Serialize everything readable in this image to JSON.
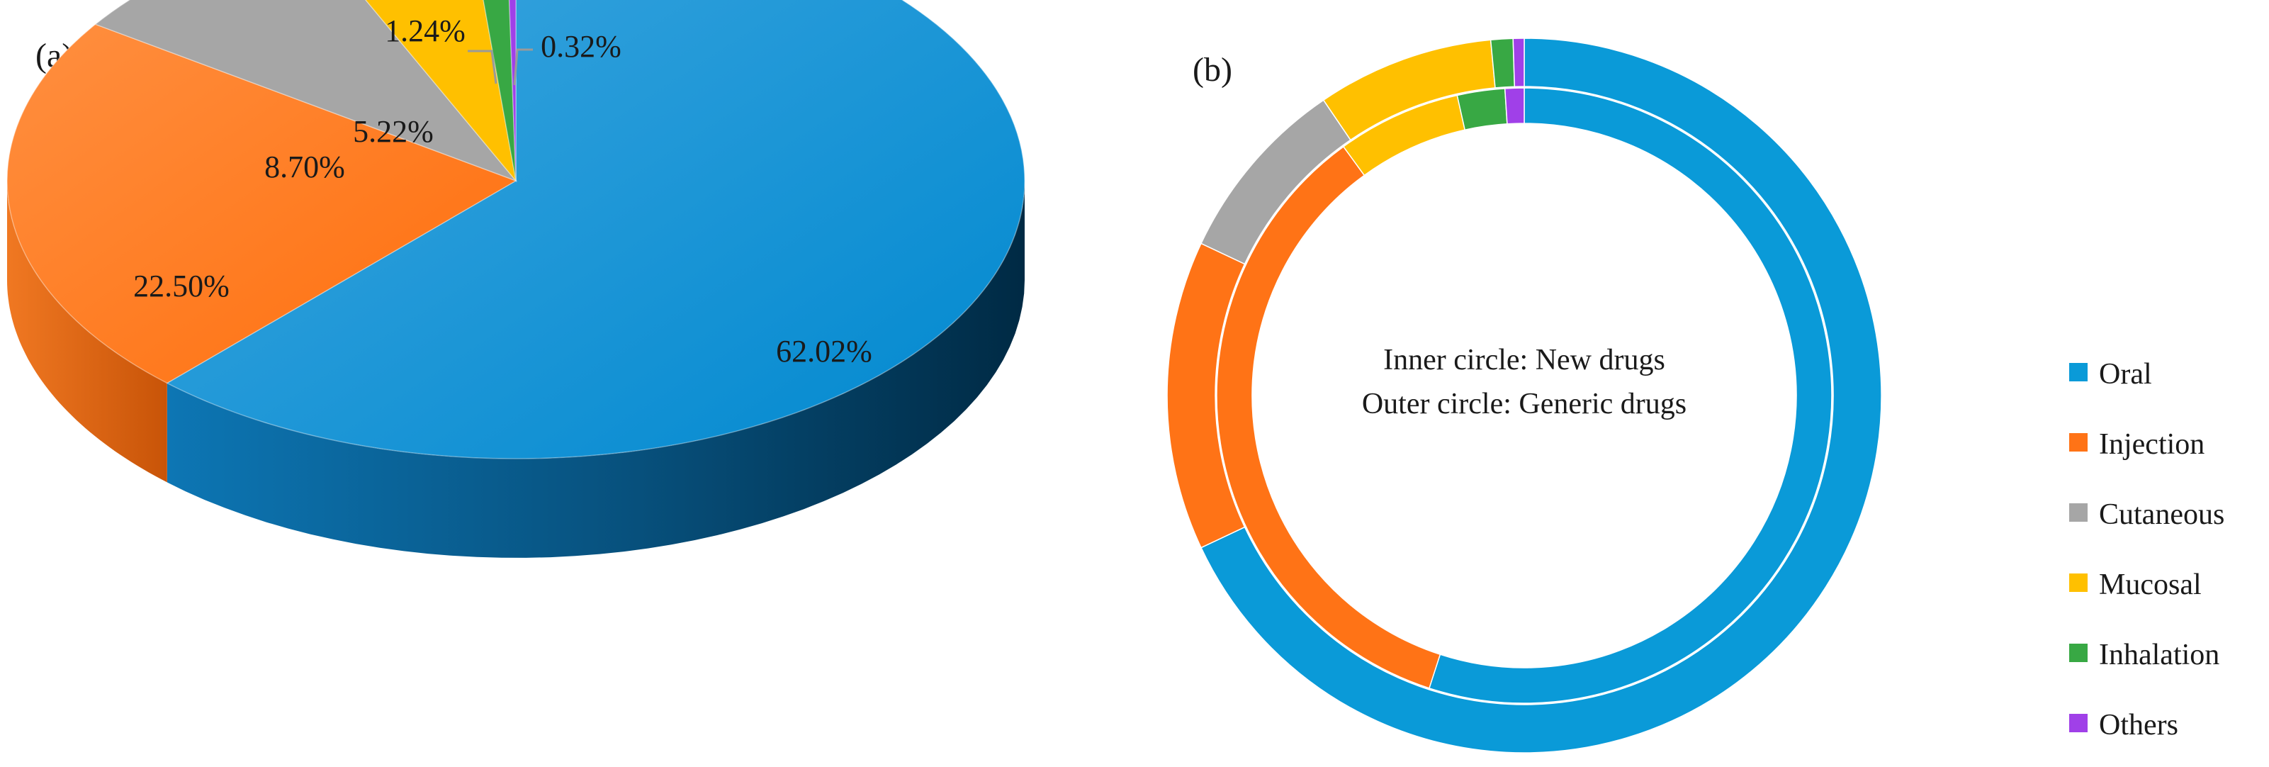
{
  "panels": {
    "a_label": "(a)",
    "b_label": "(b)"
  },
  "legend": {
    "position": "right",
    "items": [
      {
        "label": "Oral",
        "color": "#0a9ad8"
      },
      {
        "label": "Injection",
        "color": "#ff7316"
      },
      {
        "label": "Cutaneous",
        "color": "#a6a6a6"
      },
      {
        "label": "Mucosal",
        "color": "#ffc000"
      },
      {
        "label": "Inhalation",
        "color": "#38a844"
      },
      {
        "label": "Others",
        "color": "#a040e8"
      }
    ]
  },
  "donut_annotation": {
    "line1": "Inner circle: New drugs",
    "line2": "Outer circle: Generic drugs"
  },
  "chart_data": [
    {
      "panel": "(a)",
      "type": "pie",
      "style": "3d",
      "categories": [
        "Oral",
        "Injection",
        "Cutaneous",
        "Mucosal",
        "Inhalation",
        "Others"
      ],
      "values": [
        62.02,
        22.5,
        8.7,
        5.22,
        1.24,
        0.32
      ],
      "labels": [
        "62.02%",
        "22.50%",
        "8.70%",
        "5.22%",
        "1.24%",
        "0.32%"
      ]
    },
    {
      "panel": "(b)",
      "type": "pie",
      "style": "double-donut",
      "categories": [
        "Oral",
        "Injection",
        "Cutaneous",
        "Mucosal",
        "Inhalation",
        "Others"
      ],
      "series": [
        {
          "name": "Inner circle: New drugs",
          "values": [
            55.0,
            35.0,
            0,
            6.5,
            2.5,
            1.0
          ]
        },
        {
          "name": "Outer circle: Generic drugs",
          "values": [
            68.0,
            14.0,
            8.5,
            8.0,
            1.0,
            0.5
          ]
        }
      ]
    }
  ]
}
